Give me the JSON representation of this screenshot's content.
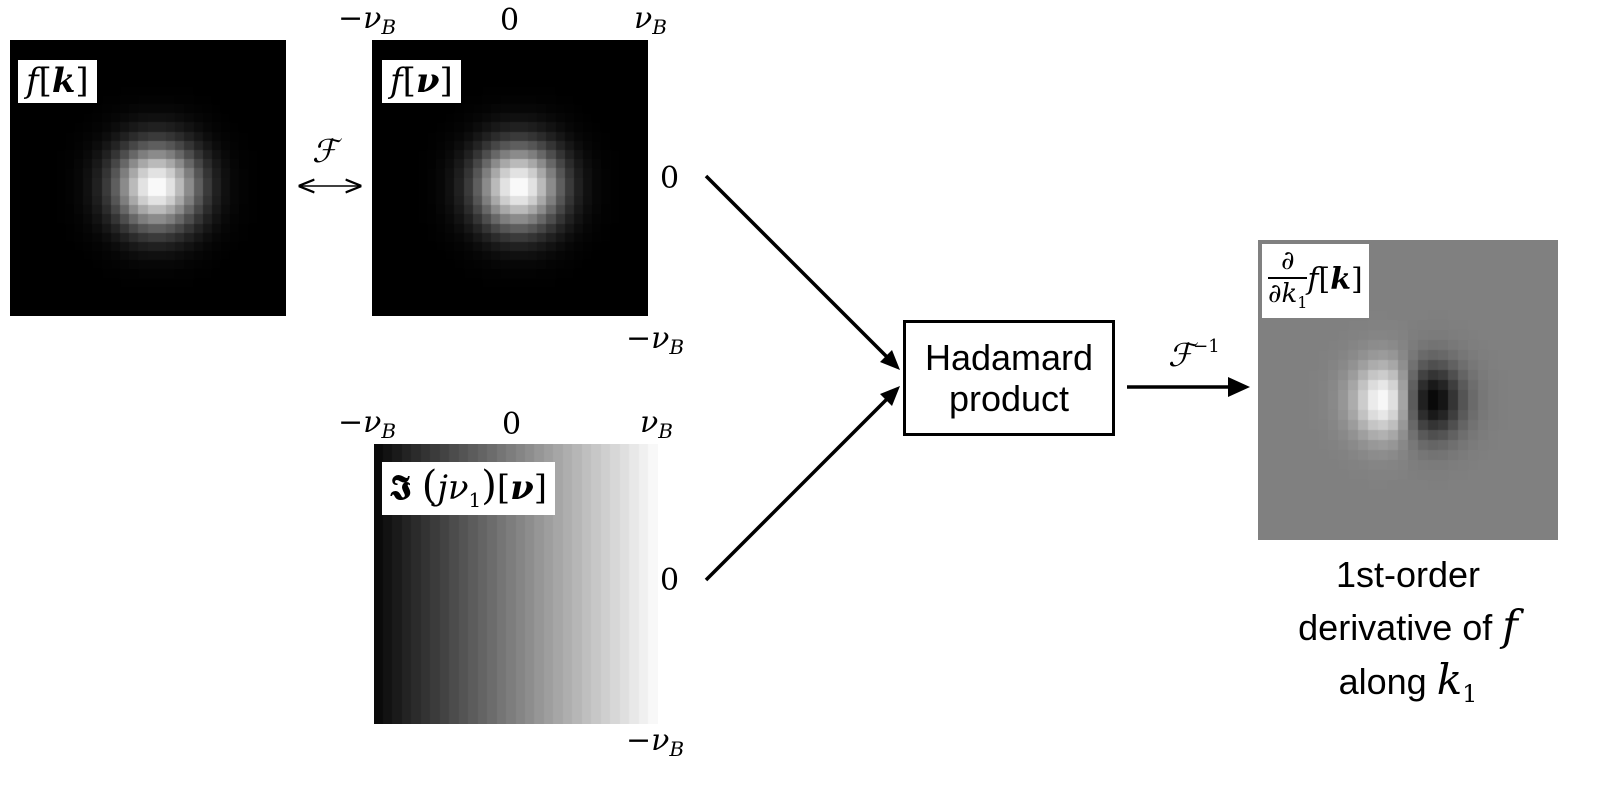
{
  "panels": {
    "f": {
      "label_fn": "f",
      "label_arg": "k"
    },
    "f_hat": {
      "label_fn": "f",
      "label_arg": "ν"
    },
    "ramp": {
      "label_script": "𝕴",
      "label_inner": "jν",
      "label_inner_sub": "1",
      "label_arg": "ν"
    },
    "derivative": {
      "label_num": "∂",
      "label_den": "∂k",
      "label_den_sub": "1",
      "label_fn": "f",
      "label_arg": "k"
    }
  },
  "ticks": {
    "minus_nu": "−ν",
    "nu": "ν",
    "zero": "0",
    "sub_B": "B"
  },
  "transform": {
    "forward": "ℱ",
    "inverse": "ℱ",
    "inverse_sup": "−1"
  },
  "hadamard": {
    "line1": "Hadamard",
    "line2": "product"
  },
  "caption": {
    "line1": "1st-order",
    "line2_text": "derivative of",
    "line2_var": "f",
    "line3_text": "along",
    "line3_var": "k",
    "line3_sub": "1"
  },
  "colors": {
    "background": "#000000",
    "derivative_background": "#808080",
    "arrow": "#000000"
  }
}
